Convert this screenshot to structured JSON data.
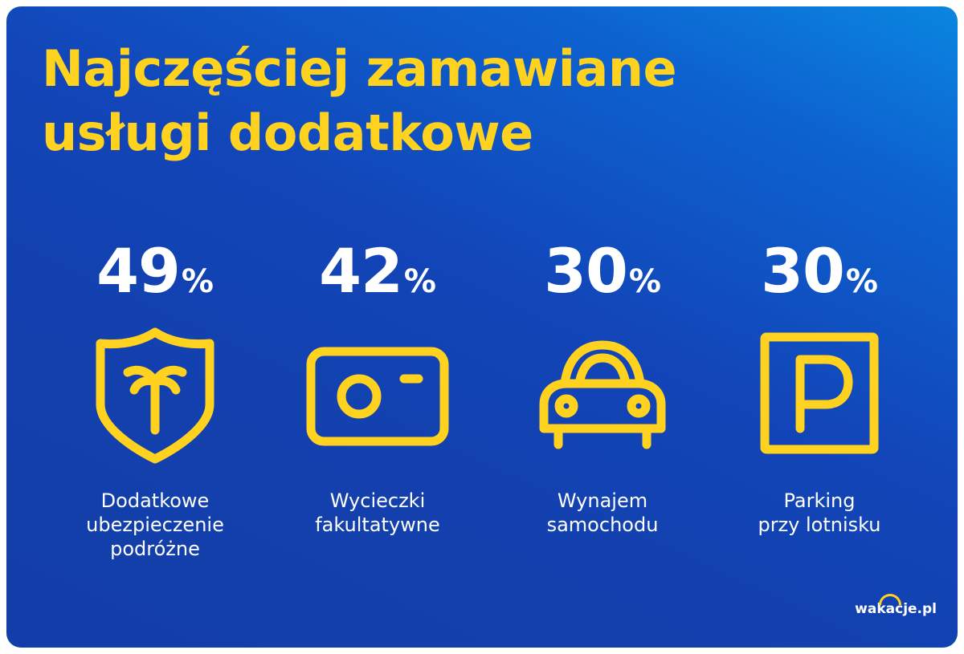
{
  "title": {
    "line1": "Najczęściej zamawiane",
    "line2": "usługi dodatkowe"
  },
  "items": [
    {
      "value": "49",
      "unit": "%",
      "label_lines": [
        "Dodatkowe",
        "ubezpieczenie",
        "podróżne"
      ],
      "icon": "shield-palm-icon"
    },
    {
      "value": "42",
      "unit": "%",
      "label_lines": [
        "Wycieczki",
        "fakultatywne"
      ],
      "icon": "camera-icon"
    },
    {
      "value": "30",
      "unit": "%",
      "label_lines": [
        "Wynajem",
        "samochodu"
      ],
      "icon": "car-icon"
    },
    {
      "value": "30",
      "unit": "%",
      "label_lines": [
        "Parking",
        "przy lotnisku"
      ],
      "icon": "parking-icon"
    }
  ],
  "logo": "wakacje.pl",
  "colors": {
    "accent": "#ffd21f",
    "background": "#1340ad",
    "text": "#ffffff"
  }
}
